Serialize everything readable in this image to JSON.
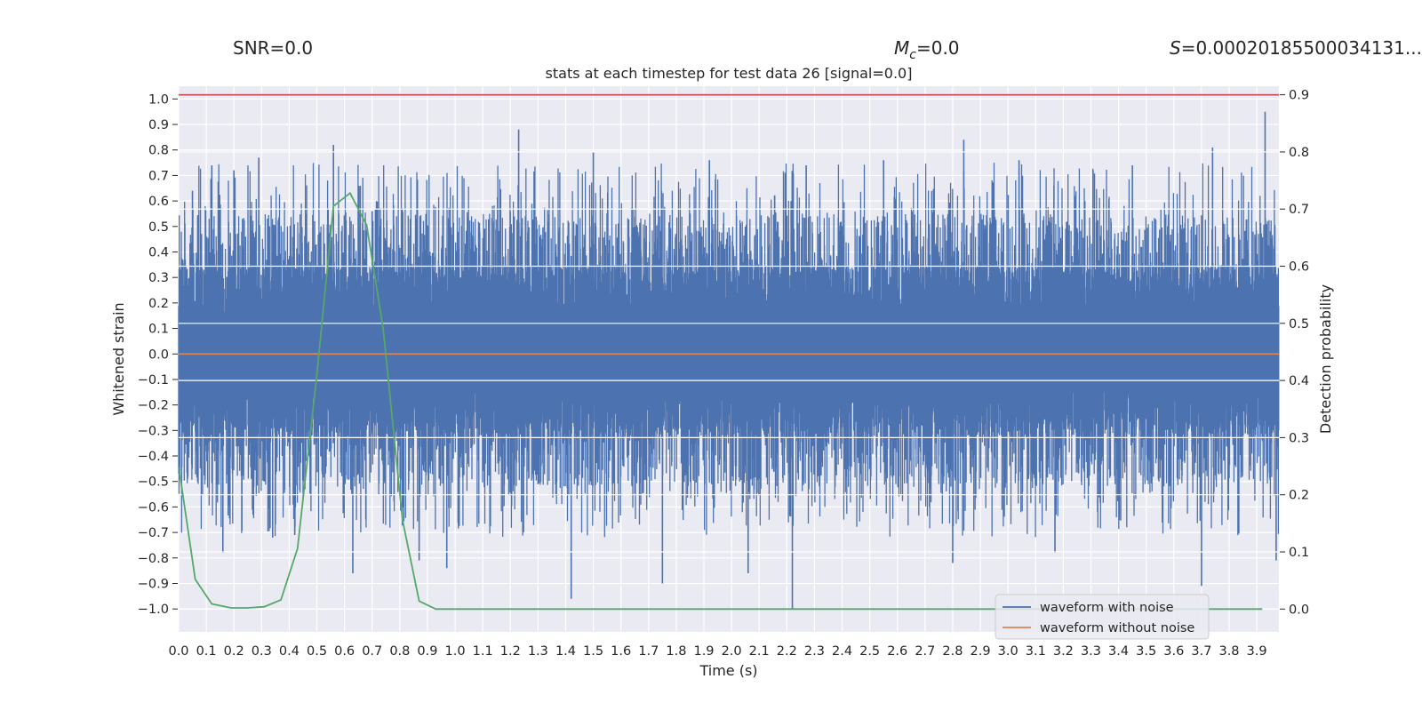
{
  "header": {
    "snr_label": "SNR=0.0",
    "mc_symbol": "M",
    "mc_subscript": "c",
    "mc_value": "=0.0",
    "s_symbol": "S",
    "s_value": "=0.00020185500034131..."
  },
  "chart_data": {
    "type": "line",
    "title": "stats at each timestep for test data 26 [signal=0.0]",
    "xlabel": "Time (s)",
    "ylabel_left": "Whitened strain",
    "ylabel_right": "Detection probability",
    "xlim": [
      0.0,
      3.98
    ],
    "ylim_left": [
      -1.09,
      1.05
    ],
    "ylim_right": [
      -0.04,
      0.915
    ],
    "x_ticks": [
      "0.0",
      "0.1",
      "0.2",
      "0.3",
      "0.4",
      "0.5",
      "0.6",
      "0.7",
      "0.8",
      "0.9",
      "1.0",
      "1.1",
      "1.2",
      "1.3",
      "1.4",
      "1.5",
      "1.6",
      "1.7",
      "1.8",
      "1.9",
      "2.0",
      "2.1",
      "2.2",
      "2.3",
      "2.4",
      "2.5",
      "2.6",
      "2.7",
      "2.8",
      "2.9",
      "3.0",
      "3.1",
      "3.2",
      "3.3",
      "3.4",
      "3.5",
      "3.6",
      "3.7",
      "3.8",
      "3.9"
    ],
    "y_ticks_left": [
      "1.0",
      "0.9",
      "0.8",
      "0.7",
      "0.6",
      "0.5",
      "0.4",
      "0.3",
      "0.2",
      "0.1",
      "0.0",
      "−0.1",
      "−0.2",
      "−0.3",
      "−0.4",
      "−0.5",
      "−0.6",
      "−0.7",
      "−0.8",
      "−0.9",
      "−1.0"
    ],
    "y_ticks_right": [
      "0.9",
      "0.8",
      "0.7",
      "0.6",
      "0.5",
      "0.4",
      "0.3",
      "0.2",
      "0.1",
      "0.0"
    ],
    "threshold": 0.9,
    "series": [
      {
        "name": "waveform with noise",
        "color": "#4c72b0",
        "description": "dense whitened noise; sample spikes (time s, strain)",
        "spikes": [
          [
            0.05,
            0.64
          ],
          [
            0.12,
            0.74
          ],
          [
            0.16,
            -0.78
          ],
          [
            0.2,
            0.72
          ],
          [
            0.29,
            0.77
          ],
          [
            0.34,
            -0.72
          ],
          [
            0.42,
            -0.71
          ],
          [
            0.56,
            0.82
          ],
          [
            0.63,
            -0.86
          ],
          [
            0.7,
            0.56
          ],
          [
            0.87,
            -0.81
          ],
          [
            0.97,
            -0.84
          ],
          [
            1.23,
            0.88
          ],
          [
            1.42,
            -0.96
          ],
          [
            1.5,
            0.79
          ],
          [
            1.75,
            -0.9
          ],
          [
            1.92,
            0.76
          ],
          [
            2.06,
            -0.86
          ],
          [
            2.22,
            -1.0
          ],
          [
            2.27,
            0.74
          ],
          [
            2.55,
            0.76
          ],
          [
            2.8,
            -0.82
          ],
          [
            2.84,
            0.84
          ],
          [
            3.04,
            0.76
          ],
          [
            3.17,
            -0.78
          ],
          [
            3.45,
            0.74
          ],
          [
            3.7,
            -0.91
          ],
          [
            3.74,
            0.81
          ],
          [
            3.93,
            0.95
          ],
          [
            3.97,
            -0.81
          ]
        ]
      },
      {
        "name": "waveform without noise",
        "color": "#dd8452",
        "x": [
          0.0,
          3.98
        ],
        "y": [
          0.0,
          0.0
        ]
      },
      {
        "name": "detection probability",
        "color": "#55a868",
        "axis": "right",
        "x": [
          0.0,
          0.06,
          0.12,
          0.19,
          0.25,
          0.31,
          0.37,
          0.43,
          0.5,
          0.56,
          0.62,
          0.68,
          0.74,
          0.81,
          0.87,
          0.93,
          3.92
        ],
        "y": [
          0.25,
          0.052,
          0.009,
          0.002,
          0.002,
          0.004,
          0.016,
          0.106,
          0.41,
          0.705,
          0.728,
          0.672,
          0.49,
          0.155,
          0.014,
          0.0,
          0.0
        ]
      }
    ],
    "legend": {
      "placement": "bottom-right",
      "entries": [
        "waveform with noise",
        "waveform without noise"
      ]
    }
  }
}
